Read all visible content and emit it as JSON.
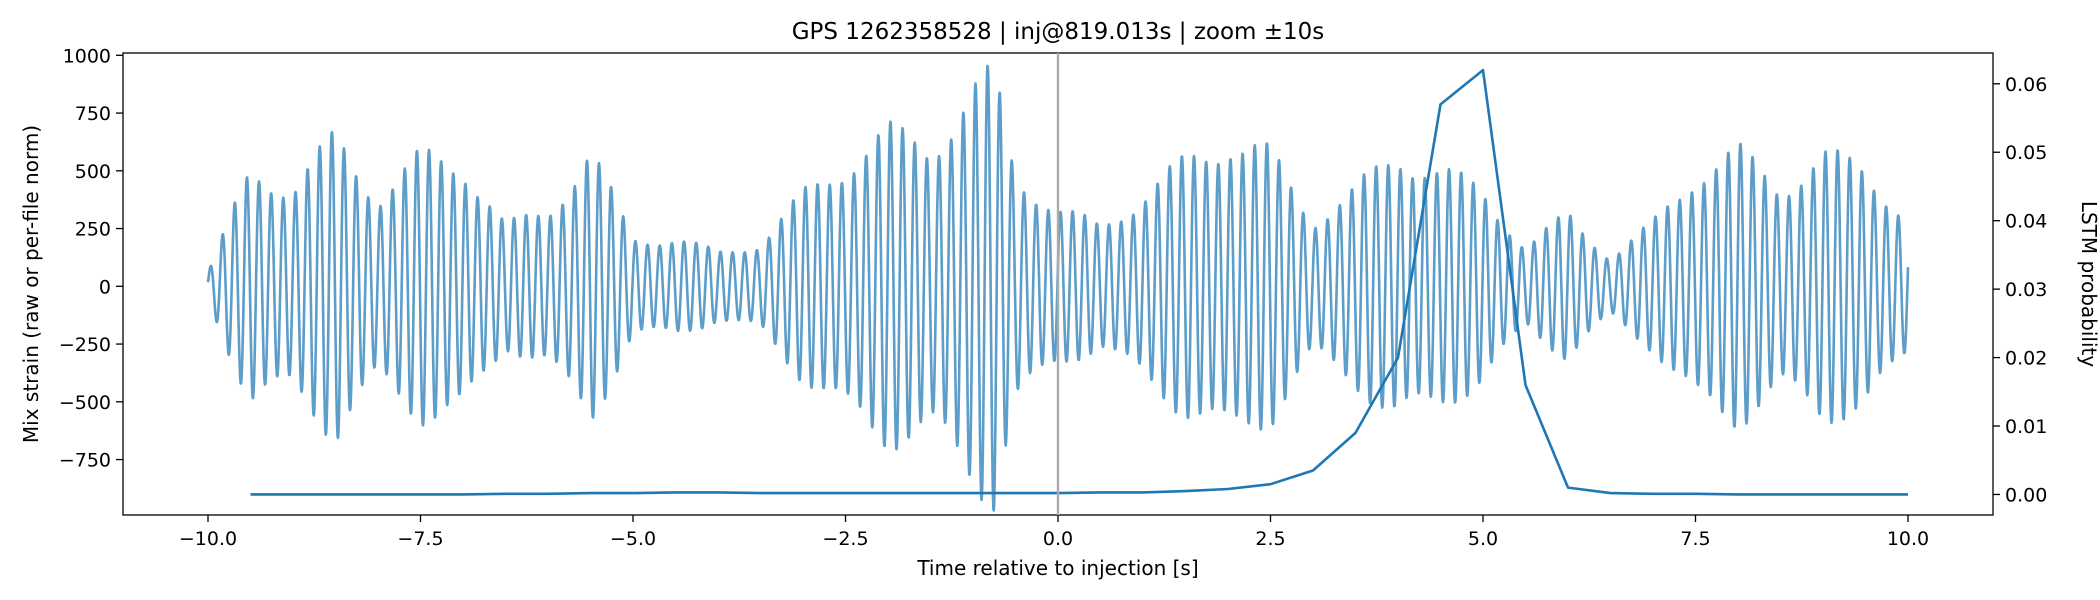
{
  "chart_data": {
    "type": "line",
    "title": "GPS 1262358528 | inj@819.013s | zoom ±10s",
    "xlabel": "Time relative to injection [s]",
    "ylabel": "Mix strain (raw or per-file norm)",
    "y2label": "LSTM probability",
    "xlim": [
      -11.0,
      11.0
    ],
    "ylim": [
      -990,
      1010
    ],
    "y2lim": [
      -0.003,
      0.0645
    ],
    "xticks": [
      -10.0,
      -7.5,
      -5.0,
      -2.5,
      0.0,
      2.5,
      5.0,
      7.5,
      10.0
    ],
    "xtick_labels": [
      "−10.0",
      "−7.5",
      "−5.0",
      "−2.5",
      "0.0",
      "2.5",
      "5.0",
      "7.5",
      "10.0"
    ],
    "yticks": [
      -750,
      -500,
      -250,
      0,
      250,
      500,
      750,
      1000
    ],
    "ytick_labels": [
      "−750",
      "−500",
      "−250",
      "0",
      "250",
      "500",
      "750",
      "1000"
    ],
    "y2ticks": [
      0.0,
      0.01,
      0.02,
      0.03,
      0.04,
      0.05,
      0.06
    ],
    "y2tick_labels": [
      "0.00",
      "0.01",
      "0.02",
      "0.03",
      "0.04",
      "0.05",
      "0.06"
    ],
    "grid": false,
    "injection_marker_x": 0.0,
    "colors": {
      "strain": "#1f77b4",
      "probability": "#1f77b4",
      "marker": "#aaaaaa"
    },
    "strain_model": {
      "x_range": [
        -10.0,
        10.0
      ],
      "carrier_cycles_per_s": 7.0,
      "envelope_x": [
        -10.0,
        -9.5,
        -9.0,
        -8.5,
        -8.0,
        -7.5,
        -7.0,
        -6.5,
        -6.0,
        -5.5,
        -5.0,
        -4.5,
        -4.0,
        -3.5,
        -3.0,
        -2.5,
        -2.0,
        -1.5,
        -1.0,
        -0.75,
        -0.5,
        -0.25,
        0.0,
        0.5,
        1.0,
        1.5,
        2.0,
        2.5,
        3.0,
        3.5,
        4.0,
        4.5,
        5.0,
        5.5,
        6.0,
        6.5,
        7.0,
        7.5,
        8.0,
        8.5,
        9.0,
        9.5,
        10.0
      ],
      "envelope_y": [
        60,
        480,
        420,
        620,
        380,
        540,
        520,
        250,
        320,
        560,
        200,
        200,
        140,
        180,
        380,
        520,
        640,
        600,
        800,
        880,
        480,
        400,
        320,
        250,
        380,
        520,
        620,
        550,
        280,
        400,
        560,
        480,
        400,
        160,
        300,
        120,
        260,
        480,
        560,
        420,
        540,
        500,
        280
      ]
    },
    "series": [
      {
        "axis": "y2",
        "x": [
          -9.5,
          -9.0,
          -8.5,
          -8.0,
          -7.5,
          -7.0,
          -6.5,
          -6.0,
          -5.5,
          -5.0,
          -4.5,
          -4.0,
          -3.5,
          -3.0,
          -2.5,
          -2.0,
          -1.5,
          -1.0,
          -0.5,
          0.0,
          0.5,
          1.0,
          1.5,
          2.0,
          2.5,
          3.0,
          3.5,
          4.0,
          4.5,
          5.0,
          5.5,
          6.0,
          6.5,
          7.0,
          7.5,
          8.0,
          8.5,
          9.0,
          9.5,
          10.0
        ],
        "values": [
          0.0,
          0.0,
          0.0,
          0.0,
          0.0,
          0.0,
          0.0001,
          0.0001,
          0.0002,
          0.0002,
          0.0003,
          0.0003,
          0.0002,
          0.0002,
          0.0002,
          0.0002,
          0.0002,
          0.0002,
          0.0002,
          0.0002,
          0.0003,
          0.0003,
          0.0005,
          0.0008,
          0.0015,
          0.0035,
          0.009,
          0.02,
          0.057,
          0.062,
          0.016,
          0.001,
          0.0002,
          0.0001,
          0.0001,
          0.0,
          0.0,
          0.0,
          0.0,
          0.0
        ]
      }
    ]
  }
}
